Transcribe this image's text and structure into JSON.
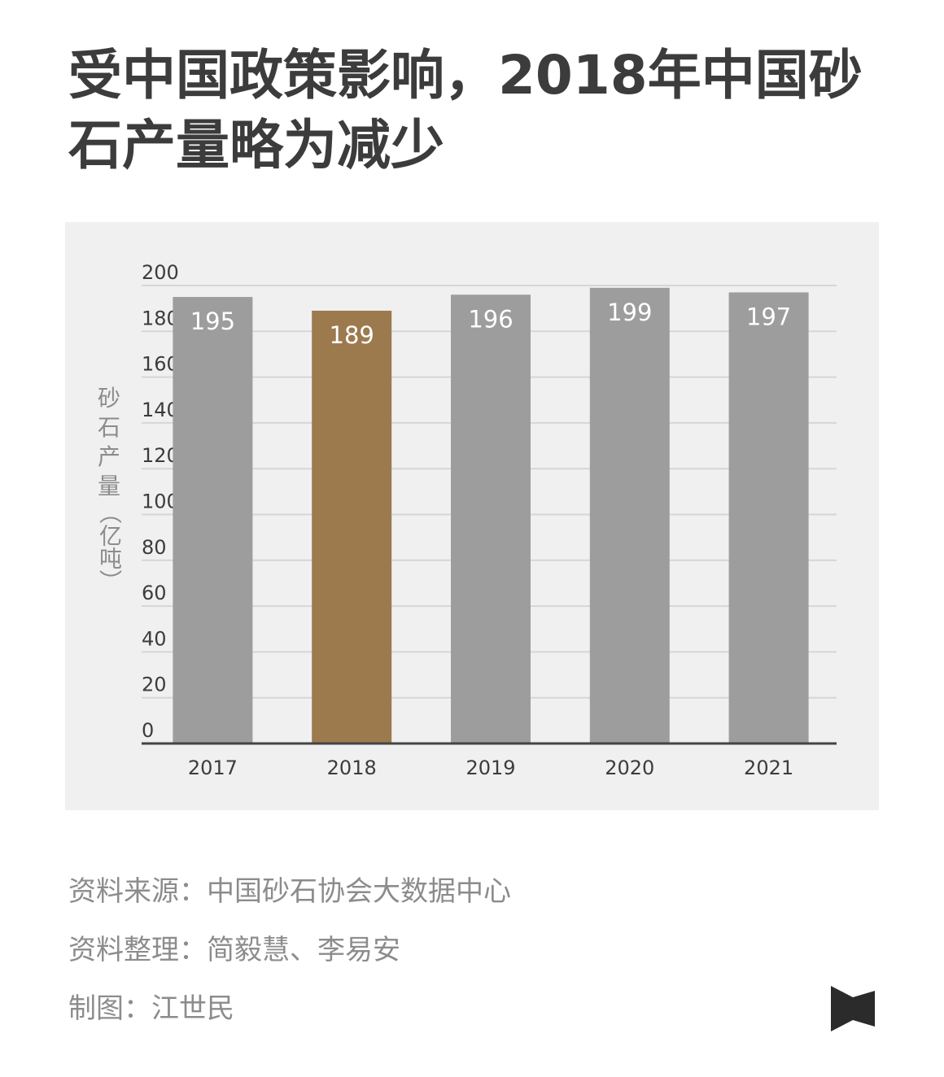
{
  "title": {
    "line1": "受中国政策影响，2018年中国砂",
    "line2": "石产量略为减少"
  },
  "chart_data": {
    "type": "bar",
    "categories": [
      "2017",
      "2018",
      "2019",
      "2020",
      "2021"
    ],
    "values": [
      195,
      189,
      196,
      199,
      197
    ],
    "highlight_category": "2018",
    "colors": {
      "default": "#9d9d9d",
      "highlight": "#9c7a4e",
      "panel": "#f0f0f0",
      "grid": "#d6d6d6",
      "axis": "#444444"
    },
    "ylabel": "砂石产量（亿吨）",
    "ylabel_chars": [
      "砂",
      "石",
      "产",
      "量"
    ],
    "ylabel_unit": "（亿吨）",
    "yticks": [
      0,
      20,
      40,
      60,
      80,
      100,
      120,
      140,
      160,
      180,
      200
    ],
    "ylim": [
      0,
      200
    ],
    "grid": true,
    "data_labels": true
  },
  "footer": {
    "source": "资料来源：中国砂石协会大数据中心",
    "compiled": "资料整理：简毅慧、李易安",
    "chart_by": "制图：江世民"
  },
  "logo": {
    "icon": "bowtie-logo-icon",
    "color": "#2b2b2b"
  }
}
